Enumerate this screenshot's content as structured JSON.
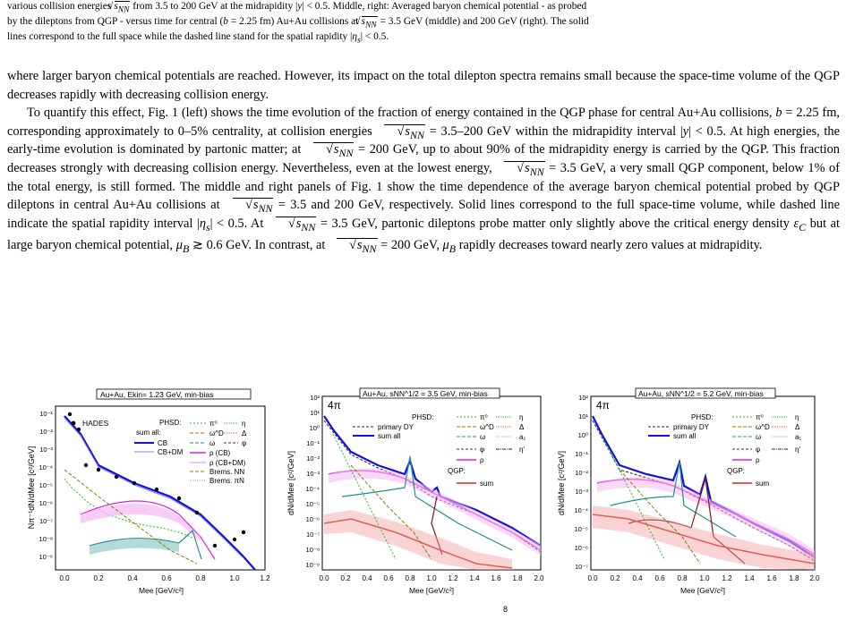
{
  "caption": {
    "line1": "various collision energies √sNN from 3.5 to 200 GeV at the midrapidity |y| < 0.5. Middle, right: Averaged baryon chemical potential - as probed",
    "line2": "by the dileptons from QGP - versus time for central (b = 2.25 fm) Au+Au collisions at √sNN = 3.5 GeV (middle) and 200 GeV (right). The solid",
    "line3": "lines correspond to the full space while the dashed line stand for the spatial rapidity |ηs| < 0.5."
  },
  "body": {
    "p1": "where larger baryon chemical potentials are reached. However, its impact on the total dilepton spectra remains small because the space-time volume of the QGP decreases rapidly with decreasing collision energy.",
    "p2": "To quantify this effect, Fig. 1 (left) shows the time evolution of the fraction of energy contained in the QGP phase for central Au+Au collisions, b = 2.25 fm, corresponding approximately to 0–5% centrality, at collision energies √sNN = 3.5–200 GeV within the midrapidity interval |y| < 0.5. At high energies, the early-time evolution is dominated by partonic matter; at √sNN = 200 GeV, up to about 90% of the midrapidity energy is carried by the QGP. This fraction decreases strongly with decreasing collision energy. Nevertheless, even at the lowest energy, √sNN = 3.5 GeV, a very small QGP component, below 1% of the total energy, is still formed. The middle and right panels of Fig. 1 show the time dependence of the average baryon chemical potential probed by QGP dileptons in central Au+Au collisions at √sNN = 3.5 and 200 GeV, respectively. Solid lines correspond to the full space-time volume, while dashed line indicate the spatial rapidity interval |ηs| < 0.5. At √sNN = 3.5 GeV, partonic dileptons probe matter only slightly above the critical energy density εC but at large baryon chemical potential, μB ≳ 0.6 GeV. In contrast, at √sNN = 200 GeV, μB rapidly decreases toward nearly zero values at midrapidity."
  },
  "figures": [
    {
      "id": "left",
      "header": "Au+Au, Ekin= 1.23 GeV, min-bias",
      "ylabel": "Nπ⁻¹dN/dMee [c²/GeV]",
      "xlabel": "Mee [GeV/c²]",
      "xticks": [
        "0.0",
        "0.2",
        "0.4",
        "0.6",
        "0.8",
        "1.0",
        "1.2"
      ],
      "yticks": [
        "10⁻¹",
        "10⁻²",
        "10⁻³",
        "10⁻⁴",
        "10⁻⁵",
        "10⁻⁶",
        "10⁻⁷",
        "10⁻⁸",
        "10⁻⁹"
      ],
      "data_label": "HADES",
      "legend_title": "PHSD:",
      "legend_sum": "sum all:",
      "legend_cb": "CB",
      "legend_cbdm": "CB+DM",
      "legend_pi0": "π⁰",
      "legend_eta": "η",
      "legend_omegaD": "ω^D",
      "legend_delta": "Δ",
      "legend_omega": "ω",
      "legend_phi": "φ",
      "legend_rhoCB": "ρ (CB)",
      "legend_rhoCBDM": "ρ (CB+DM)",
      "legend_bremsNN": "Brems. NN",
      "legend_bremsPiN": "Brems. πN"
    },
    {
      "id": "middle",
      "header": "Au+Au, sNN^1/2 = 3.5 GeV, min-bias",
      "ylabel": "dN/dMee [c²/GeV]",
      "xlabel": "Mee [GeV/c²]",
      "xticks": [
        "0.0",
        "0.2",
        "0.4",
        "0.6",
        "0.8",
        "1.0",
        "1.2",
        "1.4",
        "1.6",
        "1.8",
        "2.0"
      ],
      "yticks": [
        "10²",
        "10¹",
        "10⁰",
        "10⁻¹",
        "10⁻²",
        "10⁻³",
        "10⁻⁴",
        "10⁻⁵",
        "10⁻⁶",
        "10⁻⁷",
        "10⁻⁸",
        "10⁻⁹"
      ],
      "tag": "4π",
      "legend_title": "PHSD:",
      "legend_dy": "primary DY",
      "legend_sum": "sum all",
      "legend_pi0": "π⁰",
      "legend_eta": "η",
      "legend_omegaD": "ω^D",
      "legend_delta": "Δ",
      "legend_omega": "ω",
      "legend_a1": "a₁",
      "legend_phi": "φ",
      "legend_etap": "η'",
      "legend_rho": "ρ",
      "legend_qgp": "QGP:",
      "legend_qgpsum": "sum"
    },
    {
      "id": "right",
      "header": "Au+Au, sNN^1/2 = 5.2 GeV, min-bias",
      "ylabel": "dN/dMee [c²/GeV]",
      "xlabel": "Mee [GeV/c²]",
      "xticks": [
        "0.0",
        "0.2",
        "0.4",
        "0.6",
        "0.8",
        "1.0",
        "1.2",
        "1.4",
        "1.6",
        "1.8",
        "2.0"
      ],
      "yticks": [
        "10²",
        "10¹",
        "10⁰",
        "10⁻¹",
        "10⁻²",
        "10⁻³",
        "10⁻⁴",
        "10⁻⁵",
        "10⁻⁶",
        "10⁻⁷"
      ],
      "tag": "4π",
      "legend_title": "PHSD:",
      "legend_dy": "primary DY",
      "legend_sum": "sum all",
      "legend_pi0": "π⁰",
      "legend_eta": "η",
      "legend_omegaD": "ω^D",
      "legend_delta": "Δ",
      "legend_omega": "ω",
      "legend_a1": "a₁",
      "legend_phi": "φ",
      "legend_etap": "η'",
      "legend_rho": "ρ",
      "legend_qgp": "QGP:",
      "legend_qgpsum": "sum"
    }
  ],
  "page_mark": "8",
  "colors": {
    "blue": "#1010e0",
    "red": "#e02020",
    "magenta": "#e020e0",
    "teal": "#209090",
    "green": "#20c020",
    "darkred": "#801818",
    "orange": "#e07010",
    "olive": "#808000"
  }
}
